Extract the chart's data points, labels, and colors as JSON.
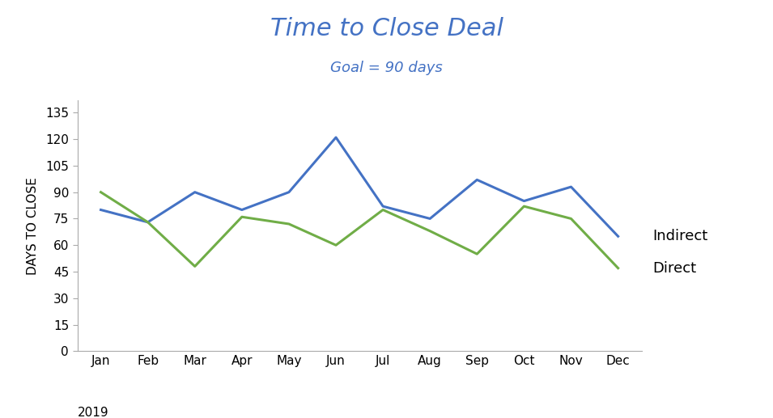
{
  "title": "Time to Close Deal",
  "subtitle": "Goal = 90 days",
  "title_color": "#4472C4",
  "subtitle_color": "#4472C4",
  "ylabel": "DAYS TO CLOSE",
  "year_label": "2019",
  "months": [
    "Jan",
    "Feb",
    "Mar",
    "Apr",
    "May",
    "Jun",
    "Jul",
    "Aug",
    "Sep",
    "Oct",
    "Nov",
    "Dec"
  ],
  "indirect": [
    80,
    73,
    90,
    80,
    90,
    121,
    82,
    75,
    97,
    85,
    93,
    65
  ],
  "direct": [
    90,
    73,
    48,
    76,
    72,
    60,
    80,
    68,
    55,
    82,
    75,
    47
  ],
  "indirect_color": "#4472C4",
  "direct_color": "#70AD47",
  "line_width": 2.2,
  "ylim": [
    0,
    142
  ],
  "yticks": [
    0,
    15,
    30,
    45,
    60,
    75,
    90,
    105,
    120,
    135
  ],
  "legend_labels": [
    "Indirect",
    "Direct"
  ],
  "background_color": "#ffffff",
  "title_fontsize": 22,
  "subtitle_fontsize": 13,
  "tick_fontsize": 11,
  "ylabel_fontsize": 11,
  "legend_fontsize": 13
}
